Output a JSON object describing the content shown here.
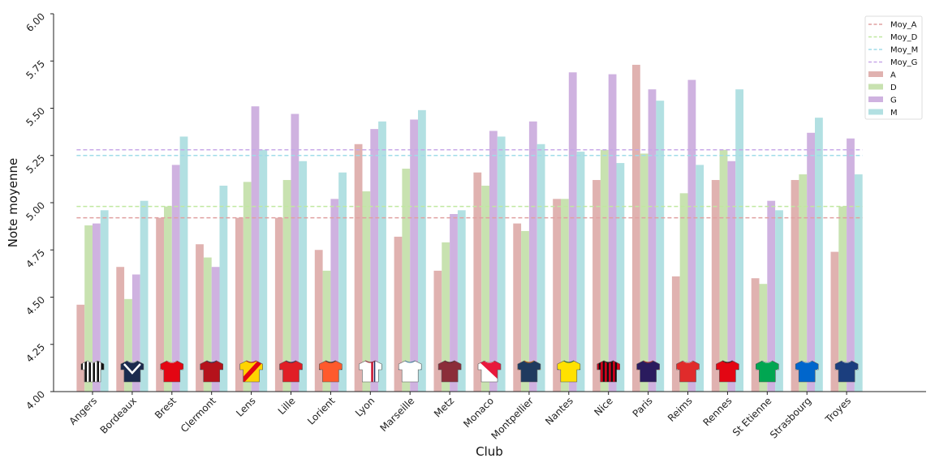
{
  "chart_data": {
    "type": "bar",
    "xlabel": "Club",
    "ylabel": "Note moyenne",
    "ylim": [
      4.0,
      6.0
    ],
    "yticks": [
      "4.00",
      "4.25",
      "4.50",
      "4.75",
      "5.00",
      "5.25",
      "5.50",
      "5.75",
      "6.00"
    ],
    "categories": [
      "Angers",
      "Bordeaux",
      "Brest",
      "Clermont",
      "Lens",
      "Lille",
      "Lorient",
      "Lyon",
      "Marseille",
      "Metz",
      "Monaco",
      "Montpellier",
      "Nantes",
      "Nice",
      "Paris",
      "Reims",
      "Rennes",
      "St Etienne",
      "Strasbourg",
      "Troyes"
    ],
    "series": [
      {
        "name": "A",
        "color": "#e0b2b0",
        "values": [
          4.46,
          4.66,
          4.92,
          4.78,
          4.92,
          4.92,
          4.75,
          5.31,
          4.82,
          4.64,
          5.16,
          4.89,
          5.02,
          5.12,
          5.73,
          4.61,
          5.12,
          4.6,
          5.12,
          4.74
        ]
      },
      {
        "name": "D",
        "color": "#c8e2b0",
        "values": [
          4.88,
          4.49,
          4.98,
          4.71,
          5.11,
          5.12,
          4.64,
          5.06,
          5.18,
          4.79,
          5.09,
          4.85,
          5.02,
          5.28,
          5.26,
          5.05,
          5.28,
          4.57,
          5.15,
          4.98
        ]
      },
      {
        "name": "G",
        "color": "#cfb2e0",
        "values": [
          4.89,
          4.62,
          5.2,
          4.66,
          5.51,
          5.47,
          5.02,
          5.39,
          5.44,
          4.94,
          5.38,
          5.43,
          5.69,
          5.68,
          5.6,
          5.65,
          5.22,
          5.01,
          5.37,
          5.34
        ]
      },
      {
        "name": "M",
        "color": "#b2e0e2",
        "values": [
          4.96,
          5.01,
          5.35,
          5.09,
          5.28,
          5.22,
          5.16,
          5.43,
          5.49,
          4.96,
          5.35,
          5.31,
          5.27,
          5.21,
          5.54,
          5.2,
          5.6,
          4.96,
          5.45,
          5.15
        ]
      }
    ],
    "reference_lines": [
      {
        "name": "Moy_A",
        "value": 4.92,
        "color": "#e0a0a0"
      },
      {
        "name": "Moy_D",
        "value": 4.98,
        "color": "#c0e8a0"
      },
      {
        "name": "Moy_M",
        "value": 5.25,
        "color": "#a0dce8"
      },
      {
        "name": "Moy_G",
        "value": 5.28,
        "color": "#c8a8e8"
      }
    ],
    "legend": {
      "placement": "top-right",
      "entries": [
        "Moy_A",
        "Moy_D",
        "Moy_M",
        "Moy_G",
        "A",
        "D",
        "G",
        "M"
      ]
    },
    "grid": false,
    "jerseys": [
      {
        "club": "Angers",
        "icon": "striped-jersey-icon",
        "primary": "#111111",
        "secondary": "#ffffff"
      },
      {
        "club": "Bordeaux",
        "icon": "chevron-jersey-icon",
        "primary": "#1b2a4e",
        "secondary": "#ffffff"
      },
      {
        "club": "Brest",
        "icon": "plain-jersey-icon",
        "primary": "#e30613",
        "secondary": "#ffffff"
      },
      {
        "club": "Clermont",
        "icon": "plain-jersey-icon",
        "primary": "#b5121b",
        "secondary": "#1a2a5c"
      },
      {
        "club": "Lens",
        "icon": "sash-jersey-icon",
        "primary": "#ffd400",
        "secondary": "#e30613"
      },
      {
        "club": "Lille",
        "icon": "plain-jersey-icon",
        "primary": "#e01e25",
        "secondary": "#1a2a5c"
      },
      {
        "club": "Lorient",
        "icon": "plain-jersey-icon",
        "primary": "#ff5a2d",
        "secondary": "#222222"
      },
      {
        "club": "Lyon",
        "icon": "stripe-jersey-icon",
        "primary": "#ffffff",
        "secondary": "#c8102e"
      },
      {
        "club": "Marseille",
        "icon": "plain-jersey-icon",
        "primary": "#ffffff",
        "secondary": "#5ab4e6"
      },
      {
        "club": "Metz",
        "icon": "plain-jersey-icon",
        "primary": "#8b2d3a",
        "secondary": "#5a1a24"
      },
      {
        "club": "Monaco",
        "icon": "diagonal-jersey-icon",
        "primary": "#e8193c",
        "secondary": "#ffffff"
      },
      {
        "club": "Montpellier",
        "icon": "plain-jersey-icon",
        "primary": "#1f3a5f",
        "secondary": "#ff7a00"
      },
      {
        "club": "Nantes",
        "icon": "plain-jersey-icon",
        "primary": "#ffe100",
        "secondary": "#1d7a3a"
      },
      {
        "club": "Nice",
        "icon": "striped-jersey-icon",
        "primary": "#d6001c",
        "secondary": "#111111"
      },
      {
        "club": "Paris",
        "icon": "plain-jersey-icon",
        "primary": "#2a1b5e",
        "secondary": "#da291c"
      },
      {
        "club": "Reims",
        "icon": "plain-jersey-icon",
        "primary": "#e02b2b",
        "secondary": "#ffffff"
      },
      {
        "club": "Rennes",
        "icon": "plain-jersey-icon",
        "primary": "#e30613",
        "secondary": "#111111"
      },
      {
        "club": "St Etienne",
        "icon": "plain-jersey-icon",
        "primary": "#00a651",
        "secondary": "#ffffff"
      },
      {
        "club": "Strasbourg",
        "icon": "plain-jersey-icon",
        "primary": "#0066cc",
        "secondary": "#ffffff"
      },
      {
        "club": "Troyes",
        "icon": "plain-jersey-icon",
        "primary": "#1b3e7e",
        "secondary": "#ffffff"
      }
    ]
  }
}
